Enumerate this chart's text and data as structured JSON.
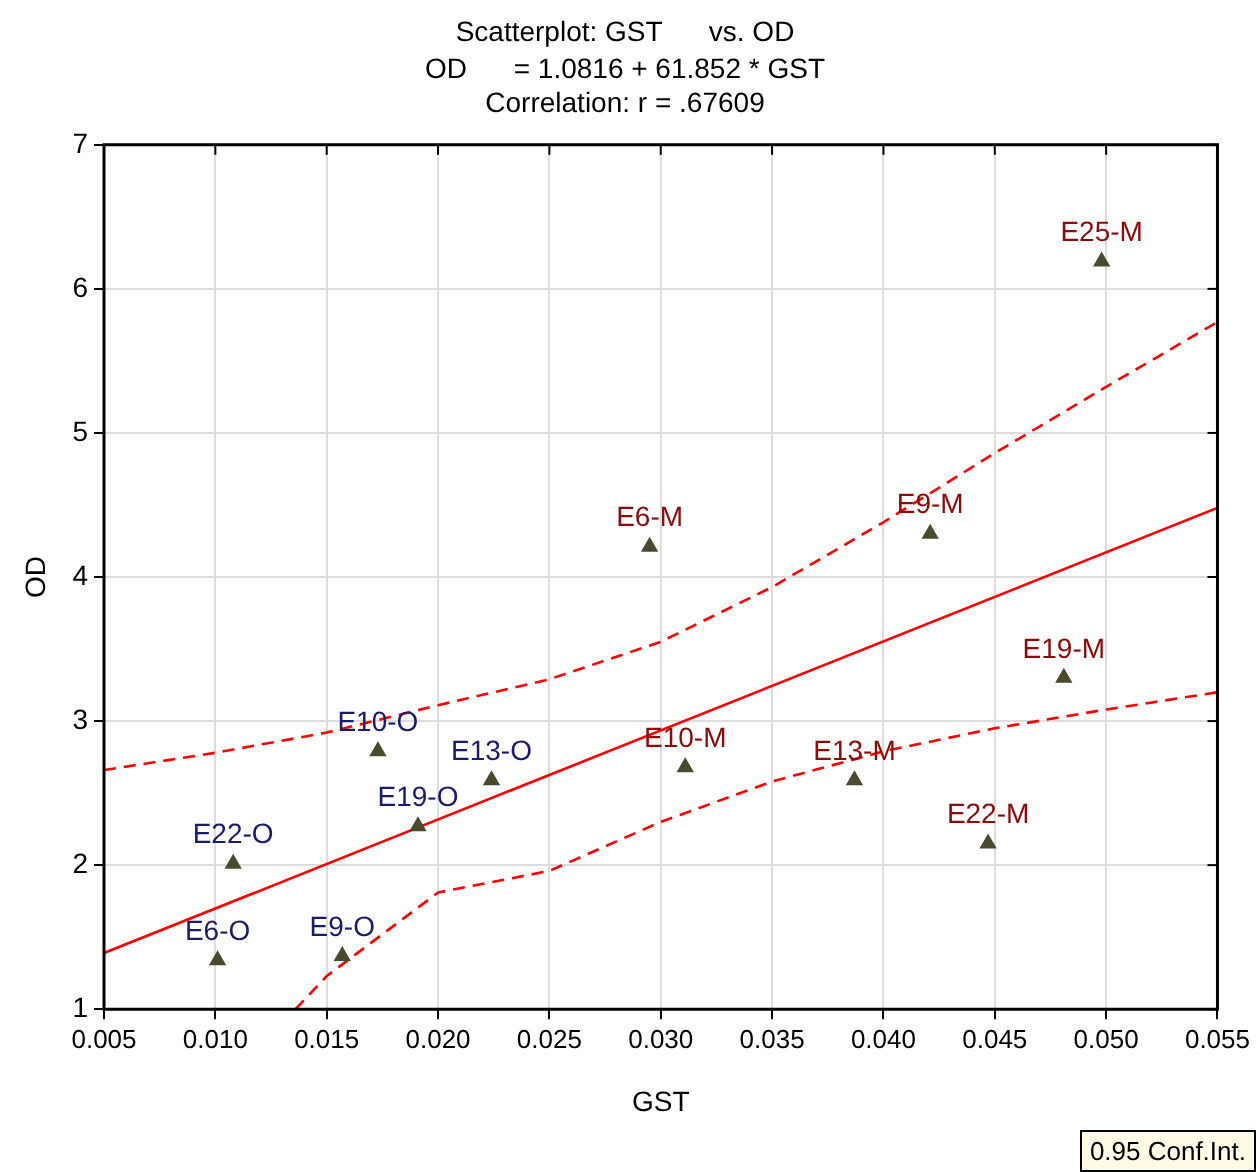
{
  "chart_data": {
    "type": "scatter",
    "title": "Scatterplot: GST      vs. OD",
    "subtitle": "OD      = 1.0816 + 61.852 * GST\nCorrelation: r = .67609",
    "xlabel": "GST",
    "ylabel": "OD",
    "xlim": [
      0.005,
      0.055
    ],
    "xticks": [
      {
        "value": 0.005,
        "label": "0.005"
      },
      {
        "value": 0.01,
        "label": "0.010"
      },
      {
        "value": 0.015,
        "label": "0.015"
      },
      {
        "value": 0.02,
        "label": "0.020"
      },
      {
        "value": 0.025,
        "label": "0.025"
      },
      {
        "value": 0.03,
        "label": "0.030"
      },
      {
        "value": 0.035,
        "label": "0.035"
      },
      {
        "value": 0.04,
        "label": "0.040"
      },
      {
        "value": 0.045,
        "label": "0.045"
      },
      {
        "value": 0.05,
        "label": "0.050"
      },
      {
        "value": 0.055,
        "label": "0.055"
      }
    ],
    "ylim": [
      1,
      7
    ],
    "yticks": [
      1,
      2,
      3,
      4,
      5,
      6,
      7
    ],
    "grid": true,
    "legend": false,
    "marker": "triangle",
    "series": [
      {
        "color": "#4a4a2e",
        "x": [
          0.0101,
          0.0157,
          0.0108,
          0.0173,
          0.0191,
          0.0224
        ],
        "values": [
          1.34,
          1.37,
          2.01,
          2.79,
          2.27,
          2.59
        ],
        "value_labels": [
          "E6-O",
          "E9-O",
          "E22-O",
          "E10-O",
          "E19-O",
          "E13-O"
        ]
      },
      {
        "color": "#4a4a2e",
        "x": [
          0.0295,
          0.0311,
          0.0387,
          0.0421,
          0.0447,
          0.0481,
          0.0498
        ],
        "values": [
          4.21,
          2.68,
          2.59,
          4.3,
          2.15,
          3.3,
          6.19
        ],
        "value_labels": [
          "E6-M",
          "E10-M",
          "E13-M",
          "E9-M",
          "E22-M",
          "E19-M",
          "E25-M"
        ]
      },
      {
        "type": "line",
        "marker": "none",
        "color": "#ff0000",
        "line_style": "solid",
        "x": [
          0.005,
          0.055
        ],
        "values": [
          1.39,
          4.48
        ]
      },
      {
        "type": "line",
        "marker": "none",
        "color": "#ff0000",
        "line_style": "dashed",
        "x": [
          0.005,
          0.01,
          0.015,
          0.02,
          0.025,
          0.03,
          0.035,
          0.04,
          0.045,
          0.05,
          0.055
        ],
        "values": [
          2.66,
          2.78,
          2.92,
          3.11,
          3.29,
          3.55,
          3.93,
          4.38,
          4.86,
          5.32,
          5.77
        ]
      },
      {
        "type": "line",
        "marker": "none",
        "color": "#ff0000",
        "line_style": "dashed",
        "x": [
          0.0136,
          0.015,
          0.02,
          0.025,
          0.03,
          0.035,
          0.04,
          0.045,
          0.05,
          0.055
        ],
        "values": [
          1.0,
          1.23,
          1.81,
          1.96,
          2.3,
          2.58,
          2.79,
          2.95,
          3.08,
          3.2
        ]
      }
    ],
    "annotations": [
      "0.95 Conf.Int."
    ]
  }
}
